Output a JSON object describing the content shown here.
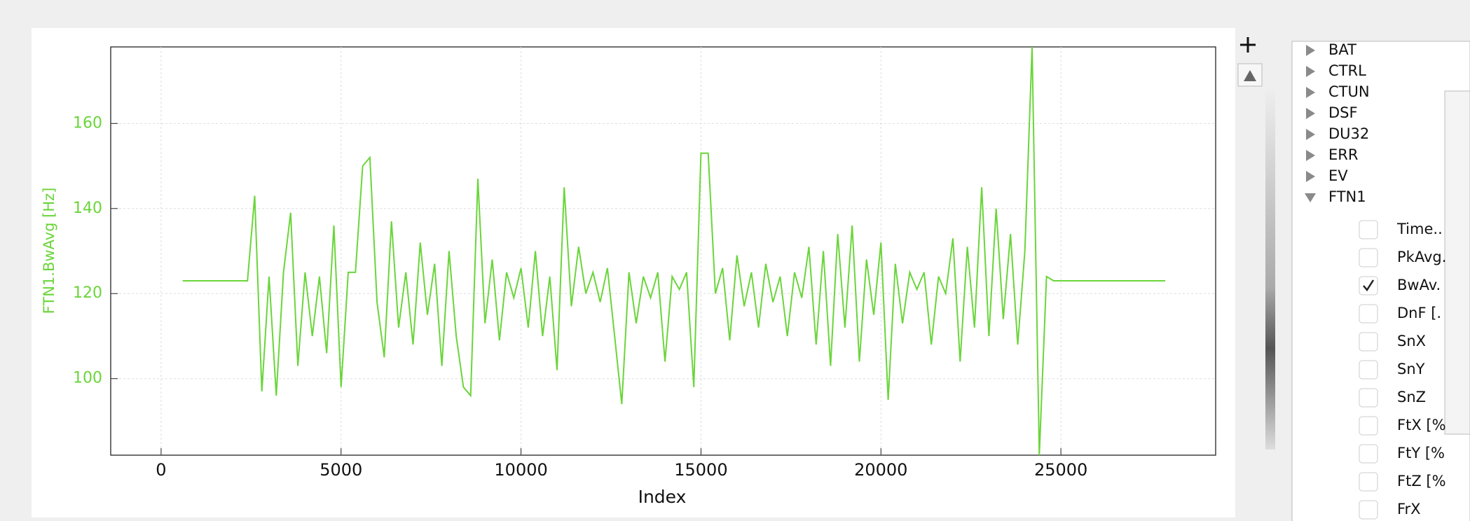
{
  "chart_data": {
    "type": "line",
    "x_label": "Index",
    "y_label": "FTN1.BwAvg [Hz]",
    "color": "#6ad53a",
    "grid": true,
    "xlim": [
      -1400,
      29300
    ],
    "ylim": [
      82,
      178
    ],
    "xticks": [
      0,
      5000,
      10000,
      15000,
      20000,
      25000
    ],
    "yticks": [
      100,
      120,
      140,
      160
    ],
    "x": [
      600,
      2400,
      2600,
      2800,
      3000,
      3200,
      3400,
      3600,
      3800,
      4000,
      4200,
      4400,
      4600,
      4800,
      5000,
      5200,
      5400,
      5600,
      5800,
      6000,
      6200,
      6400,
      6600,
      6800,
      7000,
      7200,
      7400,
      7600,
      7800,
      8000,
      8200,
      8400,
      8600,
      8800,
      9000,
      9200,
      9400,
      9600,
      9800,
      10000,
      10200,
      10400,
      10600,
      10800,
      11000,
      11200,
      11400,
      11600,
      11800,
      12000,
      12200,
      12400,
      12600,
      12800,
      13000,
      13200,
      13400,
      13600,
      13800,
      14000,
      14200,
      14400,
      14600,
      14800,
      15000,
      15200,
      15400,
      15600,
      15800,
      16000,
      16200,
      16400,
      16600,
      16800,
      17000,
      17200,
      17400,
      17600,
      17800,
      18000,
      18200,
      18400,
      18600,
      18800,
      19000,
      19200,
      19400,
      19600,
      19800,
      20000,
      20200,
      20400,
      20600,
      20800,
      21000,
      21200,
      21400,
      21600,
      21800,
      22000,
      22200,
      22400,
      22600,
      22800,
      23000,
      23200,
      23400,
      23600,
      23800,
      24000,
      24200,
      24400,
      24600,
      24800,
      27900
    ],
    "values": [
      123,
      123,
      143,
      97,
      124,
      96,
      125,
      139,
      103,
      125,
      110,
      124,
      106,
      136,
      98,
      125,
      125,
      150,
      152,
      118,
      105,
      137,
      112,
      125,
      108,
      132,
      115,
      127,
      103,
      130,
      110,
      98,
      96,
      147,
      113,
      128,
      109,
      125,
      119,
      126,
      112,
      130,
      110,
      124,
      102,
      145,
      117,
      131,
      120,
      125,
      118,
      126,
      110,
      94,
      125,
      113,
      124,
      119,
      125,
      104,
      124,
      121,
      125,
      98,
      153,
      153,
      120,
      126,
      109,
      129,
      117,
      125,
      112,
      127,
      118,
      124,
      110,
      125,
      119,
      131,
      108,
      130,
      103,
      134,
      112,
      136,
      104,
      128,
      115,
      132,
      95,
      127,
      113,
      125,
      121,
      125,
      108,
      124,
      120,
      133,
      104,
      131,
      112,
      145,
      110,
      140,
      114,
      134,
      108,
      130,
      178,
      82,
      124,
      123,
      123
    ]
  },
  "tree": [
    {
      "label": "BAT",
      "expanded": false
    },
    {
      "label": "CTRL",
      "expanded": false
    },
    {
      "label": "CTUN",
      "expanded": false
    },
    {
      "label": "DSF",
      "expanded": false
    },
    {
      "label": "DU32",
      "expanded": false
    },
    {
      "label": "ERR",
      "expanded": false
    },
    {
      "label": "EV",
      "expanded": false
    },
    {
      "label": "FTN1",
      "expanded": true,
      "children": [
        {
          "label": "Time..",
          "checked": false
        },
        {
          "label": "PkAvg.",
          "checked": false
        },
        {
          "label": "BwAv.",
          "checked": true
        },
        {
          "label": "DnF [.",
          "checked": false
        },
        {
          "label": "SnX",
          "checked": false
        },
        {
          "label": "SnY",
          "checked": false
        },
        {
          "label": "SnZ",
          "checked": false
        },
        {
          "label": "FtX [%",
          "checked": false
        },
        {
          "label": "FtY [%",
          "checked": false
        },
        {
          "label": "FtZ [%",
          "checked": false
        },
        {
          "label": "FrX",
          "checked": false
        }
      ]
    }
  ]
}
